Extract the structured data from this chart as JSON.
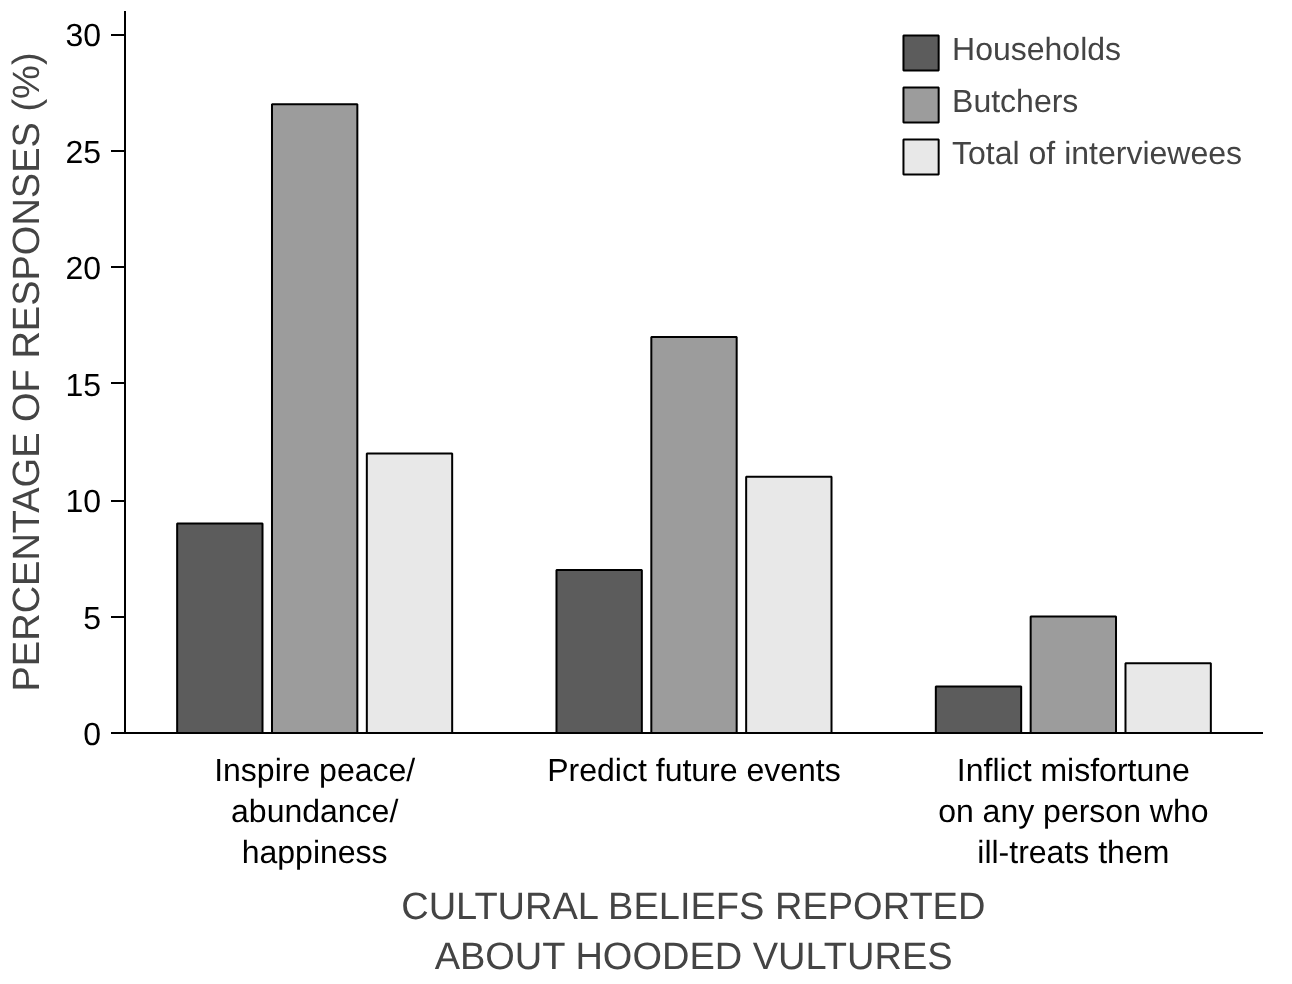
{
  "chart_data": {
    "type": "bar",
    "xlabel": "CULTURAL BELIEFS REPORTED\nABOUT HOODED VULTURES",
    "ylabel": "PERCENTAGE OF RESPONSES (%)",
    "categories": [
      "Inspire peace/\nabundance/\nhappiness",
      "Predict future events",
      "Inflict misfortune\non any person who\nill-treats them"
    ],
    "series": [
      {
        "name": "Households",
        "color": "#5c5c5c",
        "values": [
          9,
          7,
          2
        ]
      },
      {
        "name": "Butchers",
        "color": "#9c9c9c",
        "values": [
          27,
          17,
          5
        ]
      },
      {
        "name": "Total of interviewees",
        "color": "#e8e8e8",
        "values": [
          12,
          11,
          3
        ]
      }
    ],
    "ylim": [
      0,
      31
    ],
    "yticks": [
      0,
      5,
      10,
      15,
      20,
      25,
      30
    ],
    "grid": false,
    "legend": "top right"
  }
}
